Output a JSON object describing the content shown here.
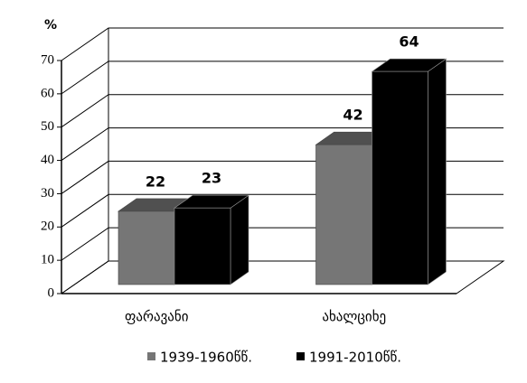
{
  "chart_data": {
    "type": "bar3d",
    "y_label": "%",
    "categories": [
      "ფარავანი",
      "ახალციხე"
    ],
    "series": [
      {
        "name": "1939-1960წწ.",
        "color": "#767676",
        "values": [
          22,
          42
        ]
      },
      {
        "name": "1991-2010წწ.",
        "color": "#000000",
        "values": [
          23,
          64
        ]
      }
    ],
    "ylim": [
      0,
      70
    ],
    "yticks": [
      0,
      10,
      20,
      30,
      40,
      50,
      60,
      70
    ],
    "grid": true,
    "legend": "bottom",
    "data_labels": true
  }
}
